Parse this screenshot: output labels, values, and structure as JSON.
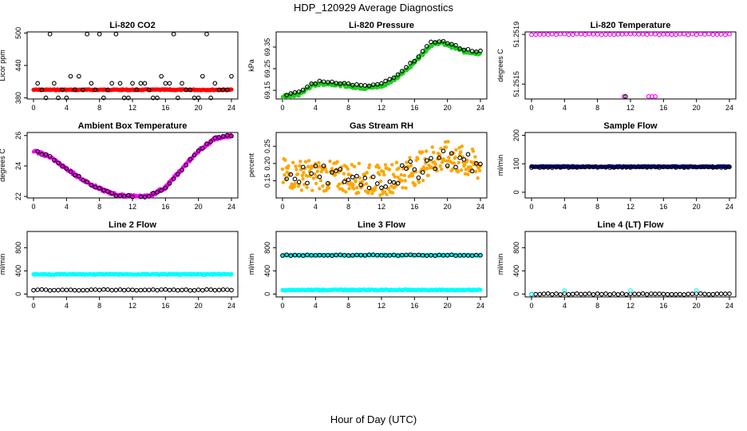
{
  "figure": {
    "title": "HDP_120929  Average Diagnostics",
    "xlabel": "Hour of Day (UTC)"
  },
  "colors": {
    "black": "#000000",
    "red": "#ff0000",
    "green": "#22cc22",
    "magenta": "#ff00ff",
    "orange": "#ffa500",
    "navy": "#000080",
    "cyan": "#00ffff"
  },
  "chart_data": [
    {
      "id": "co2",
      "type": "scatter",
      "title": "Li-820 CO2",
      "ylabel": "Licor ppm",
      "xlim": [
        0,
        24
      ],
      "ylim": [
        378,
        502
      ],
      "xticks": [
        "0",
        "4",
        "8",
        "12",
        "16",
        "20",
        "24"
      ],
      "yticks": [
        "380",
        "440",
        "500"
      ],
      "series": [
        {
          "color": "red",
          "marker": "filled-dense",
          "pattern": "flat",
          "y": [
            395
          ]
        },
        {
          "color": "black",
          "marker": "open-circle",
          "pattern": "multi-level",
          "levels": [
            380,
            395,
            407,
            420,
            498
          ]
        }
      ]
    },
    {
      "id": "pressure",
      "type": "scatter",
      "title": "Li-820 Pressure",
      "ylabel": "kPa",
      "xlim": [
        0,
        24
      ],
      "ylim": [
        69.11,
        69.42
      ],
      "xticks": [
        "0",
        "4",
        "8",
        "12",
        "16",
        "20",
        "24"
      ],
      "yticks": [
        "69.15",
        "69.25",
        "69.35"
      ],
      "series": [
        {
          "color": "green",
          "marker": "filled-dense",
          "x": [
            0,
            2,
            3.5,
            4.5,
            6,
            8,
            10,
            12,
            14,
            16,
            17,
            18,
            19,
            20,
            22,
            24
          ],
          "y": [
            69.12,
            69.13,
            69.17,
            69.18,
            69.18,
            69.17,
            69.16,
            69.17,
            69.21,
            69.28,
            69.32,
            69.36,
            69.37,
            69.36,
            69.33,
            69.32
          ]
        },
        {
          "color": "black",
          "marker": "open-circle",
          "offset": 0.03,
          "x": [
            0,
            2,
            3.5,
            4.5,
            6,
            8,
            10,
            12,
            14,
            16,
            17,
            18,
            19,
            20,
            22,
            24
          ],
          "y": [
            69.12,
            69.13,
            69.17,
            69.18,
            69.18,
            69.17,
            69.16,
            69.17,
            69.21,
            69.28,
            69.32,
            69.36,
            69.37,
            69.36,
            69.33,
            69.32
          ]
        }
      ]
    },
    {
      "id": "licor-temp",
      "type": "scatter",
      "title": "Li-820 Temperature",
      "ylabel": "degrees C",
      "xlim": [
        0,
        24
      ],
      "ylim": [
        51.25138,
        51.25192
      ],
      "xticks": [
        "0",
        "4",
        "8",
        "12",
        "16",
        "20",
        "24"
      ],
      "yticks": [
        "51.2515",
        "51.2519"
      ],
      "series": [
        {
          "color": "magenta",
          "marker": "open-circle",
          "pattern": "flat",
          "y": [
            51.2519
          ]
        },
        {
          "color": "magenta",
          "marker": "open-circle",
          "pattern": "points",
          "x": [
            11.2,
            14.2,
            14.6,
            15.0
          ],
          "y": [
            51.2514,
            51.2514,
            51.2514,
            51.2514
          ]
        },
        {
          "color": "black",
          "marker": "open-circle",
          "pattern": "points",
          "x": [
            11.4
          ],
          "y": [
            51.2514
          ]
        }
      ]
    },
    {
      "id": "box-temp",
      "type": "scatter",
      "title": "Ambient Box Temperature",
      "ylabel": "degrees C",
      "xlim": [
        0,
        24
      ],
      "ylim": [
        21.9,
        26.2
      ],
      "xticks": [
        "0",
        "4",
        "8",
        "12",
        "16",
        "20",
        "24"
      ],
      "yticks": [
        "22",
        "24",
        "26"
      ],
      "series": [
        {
          "color": "magenta",
          "marker": "filled-dense",
          "x": [
            0,
            2,
            4,
            6,
            8,
            10,
            12,
            14,
            16,
            18,
            20,
            22,
            24
          ],
          "y": [
            25.0,
            24.6,
            23.8,
            23.1,
            22.5,
            22.1,
            22.0,
            22.0,
            22.6,
            23.8,
            25.0,
            25.8,
            26.0
          ]
        },
        {
          "color": "black",
          "marker": "open-circle",
          "offset": 0.0,
          "x": [
            0,
            2,
            4,
            6,
            8,
            10,
            12,
            14,
            16,
            18,
            20,
            22,
            24
          ],
          "y": [
            25.0,
            24.6,
            23.8,
            23.1,
            22.5,
            22.1,
            22.0,
            22.0,
            22.6,
            23.8,
            25.0,
            25.8,
            26.0
          ]
        }
      ]
    },
    {
      "id": "rh",
      "type": "scatter",
      "title": "Gas Stream RH",
      "ylabel": "percent",
      "xlim": [
        0,
        24
      ],
      "ylim": [
        0.1,
        0.29
      ],
      "xticks": [
        "0",
        "4",
        "8",
        "12",
        "16",
        "20",
        "24"
      ],
      "yticks": [
        "0.15",
        "0.20",
        "0.25"
      ],
      "series": [
        {
          "color": "orange",
          "marker": "filled-dense",
          "spread": 0.045,
          "x": [
            0,
            4,
            8,
            12,
            16,
            18,
            20,
            24
          ],
          "y": [
            0.17,
            0.165,
            0.16,
            0.15,
            0.18,
            0.21,
            0.22,
            0.19
          ]
        },
        {
          "color": "black",
          "marker": "open-circle",
          "spread": 0.03,
          "x": [
            0,
            4,
            8,
            12,
            16,
            18,
            20,
            24
          ],
          "y": [
            0.17,
            0.165,
            0.16,
            0.15,
            0.18,
            0.21,
            0.22,
            0.19
          ]
        }
      ]
    },
    {
      "id": "sample-flow",
      "type": "scatter",
      "title": "Sample Flow",
      "ylabel": "ml/min",
      "xlim": [
        0,
        24
      ],
      "ylim": [
        -20,
        210
      ],
      "xticks": [
        "0",
        "4",
        "8",
        "12",
        "16",
        "20",
        "24"
      ],
      "yticks": [
        "0",
        "100",
        "200"
      ],
      "series": [
        {
          "color": "navy",
          "marker": "filled-dense",
          "pattern": "flat",
          "y": [
            90
          ]
        },
        {
          "color": "black",
          "marker": "open-circle",
          "pattern": "flat",
          "y": [
            88
          ]
        }
      ]
    },
    {
      "id": "line2",
      "type": "scatter",
      "title": "Line 2 Flow",
      "ylabel": "ml/min",
      "xlim": [
        0,
        24
      ],
      "ylim": [
        -50,
        1080
      ],
      "xticks": [
        "0",
        "4",
        "8",
        "12",
        "16",
        "20",
        "24"
      ],
      "yticks": [
        "0",
        "400",
        "800"
      ],
      "series": [
        {
          "color": "cyan",
          "marker": "filled-dense",
          "pattern": "flat",
          "y": [
            340
          ]
        },
        {
          "color": "black",
          "marker": "open-circle",
          "pattern": "flat",
          "y": [
            70
          ]
        }
      ]
    },
    {
      "id": "line3",
      "type": "scatter",
      "title": "Line 3 Flow",
      "ylabel": "ml/min",
      "xlim": [
        0,
        24
      ],
      "ylim": [
        -50,
        1080
      ],
      "xticks": [
        "0",
        "4",
        "8",
        "12",
        "16",
        "20",
        "24"
      ],
      "yticks": [
        "0",
        "400",
        "800"
      ],
      "series": [
        {
          "color": "cyan",
          "marker": "filled-dense",
          "pattern": "flat",
          "y": [
            70,
            670
          ]
        },
        {
          "color": "black",
          "marker": "open-circle",
          "pattern": "flat",
          "y": [
            670
          ]
        }
      ]
    },
    {
      "id": "line4",
      "type": "scatter",
      "title": "Line 4 (LT) Flow",
      "ylabel": "ml/min",
      "xlim": [
        0,
        24
      ],
      "ylim": [
        -50,
        1080
      ],
      "xticks": [
        "0",
        "4",
        "8",
        "12",
        "16",
        "20",
        "24"
      ],
      "yticks": [
        "0",
        "400",
        "800"
      ],
      "series": [
        {
          "color": "black",
          "marker": "open-circle",
          "pattern": "flat",
          "y": [
            0
          ]
        },
        {
          "color": "cyan",
          "marker": "open-circle",
          "pattern": "points",
          "x": [
            0,
            4,
            12,
            20
          ],
          "y": [
            0,
            60,
            60,
            60
          ]
        }
      ]
    }
  ]
}
